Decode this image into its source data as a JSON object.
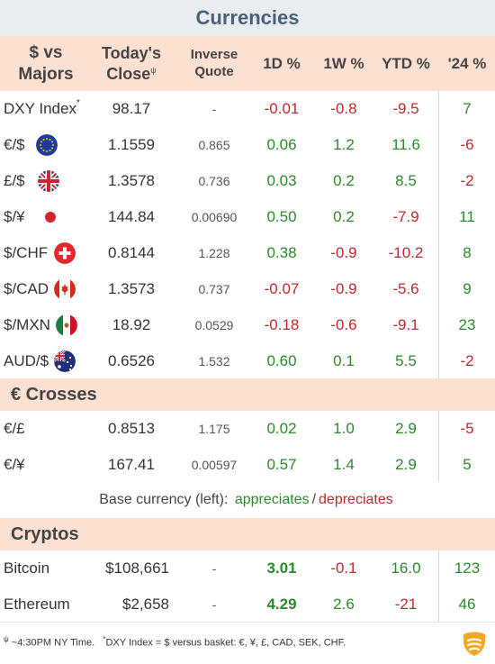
{
  "title": "Currencies",
  "header": {
    "majors": "$ vs Majors",
    "close": "Today's Close",
    "close_sup": "ψ",
    "inverse": "Inverse Quote",
    "d1": "1D %",
    "w1": "1W %",
    "ytd": "YTD %",
    "y24": "'24 %"
  },
  "majors": [
    {
      "label": "DXY Index",
      "sup": "*",
      "flag": "",
      "close": "98.17",
      "inverse": "-",
      "d1": "-0.01",
      "w1": "-0.8",
      "ytd": "-9.5",
      "y24": "7"
    },
    {
      "label": "€/$",
      "sup": "",
      "flag": "eu-flag-icon",
      "close": "1.1559",
      "inverse": "0.865",
      "d1": "0.06",
      "w1": "1.2",
      "ytd": "11.6",
      "y24": "-6"
    },
    {
      "label": "£/$",
      "sup": "",
      "flag": "uk-flag-icon",
      "close": "1.3578",
      "inverse": "0.736",
      "d1": "0.03",
      "w1": "0.2",
      "ytd": "8.5",
      "y24": "-2"
    },
    {
      "label": "$/¥",
      "sup": "",
      "flag": "japan-flag-icon",
      "close": "144.84",
      "inverse": "0.00690",
      "d1": "0.50",
      "w1": "0.2",
      "ytd": "-7.9",
      "y24": "11"
    },
    {
      "label": "$/CHF",
      "sup": "",
      "flag": "swiss-flag-icon",
      "close": "0.8144",
      "inverse": "1.228",
      "d1": "0.38",
      "w1": "-0.9",
      "ytd": "-10.2",
      "y24": "8"
    },
    {
      "label": "$/CAD",
      "sup": "",
      "flag": "canada-flag-icon",
      "close": "1.3573",
      "inverse": "0.737",
      "d1": "-0.07",
      "w1": "-0.9",
      "ytd": "-5.6",
      "y24": "9"
    },
    {
      "label": "$/MXN",
      "sup": "",
      "flag": "mexico-flag-icon",
      "close": "18.92",
      "inverse": "0.0529",
      "d1": "-0.18",
      "w1": "-0.6",
      "ytd": "-9.1",
      "y24": "23"
    },
    {
      "label": "AUD/$",
      "sup": "",
      "flag": "australia-flag-icon",
      "close": "0.6526",
      "inverse": "1.532",
      "d1": "0.60",
      "w1": "0.1",
      "ytd": "5.5",
      "y24": "-2"
    }
  ],
  "crosses_title": "€ Crosses",
  "crosses": [
    {
      "label": "€/£",
      "close": "0.8513",
      "inverse": "1.175",
      "d1": "0.02",
      "w1": "1.0",
      "ytd": "2.9",
      "y24": "-5"
    },
    {
      "label": "€/¥",
      "close": "167.41",
      "inverse": "0.00597",
      "d1": "0.57",
      "w1": "1.4",
      "ytd": "2.9",
      "y24": "5"
    }
  ],
  "legend": {
    "prefix": "Base currency (left):",
    "appreciates": "appreciates",
    "sep": "/",
    "depreciates": "depreciates"
  },
  "cryptos_title": "Cryptos",
  "cryptos": [
    {
      "label": "Bitcoin",
      "close": "$108,661",
      "inverse": "-",
      "d1": "3.01",
      "w1": "-0.1",
      "ytd": "16.0",
      "y24": "123"
    },
    {
      "label": "Ethereum",
      "close": "$2,658",
      "inverse": "-",
      "d1": "4.29",
      "w1": "2.6",
      "ytd": "-21",
      "y24": "46"
    }
  ],
  "footer": {
    "note1_sup": "ψ",
    "note1": "~4:30PM NY Time.",
    "note2_sup": "*",
    "note2": "DXY Index = $ versus basket: €, ¥, £, CAD, SEK, CHF."
  },
  "colors": {
    "positive": "#2a8a2a",
    "negative": "#c0282b",
    "header_bg": "#fce1d3",
    "title_bg": "#e9edf2",
    "title_text": "#4a6078"
  },
  "logo": "brand-logo-icon"
}
